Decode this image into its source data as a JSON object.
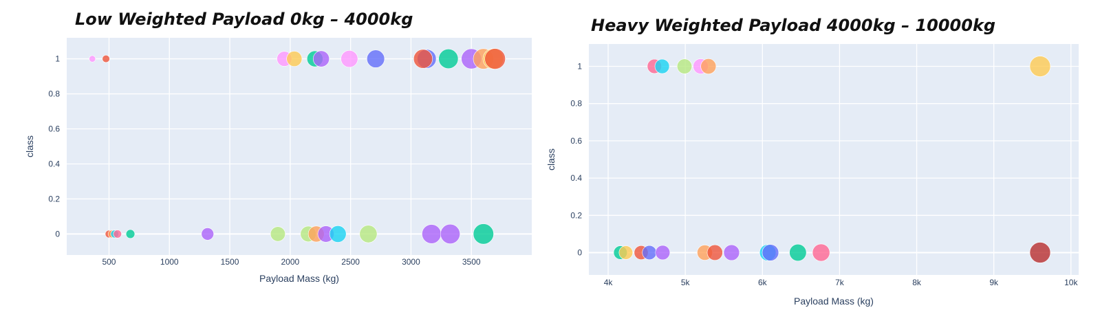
{
  "chart_data": [
    {
      "id": "left",
      "type": "scatter",
      "title": "Low Weighted Payload 0kg – 4000kg",
      "xlabel": "Payload Mass (kg)",
      "ylabel": "class",
      "xlim": [
        150,
        4000
      ],
      "ylim": [
        -0.12,
        1.12
      ],
      "xticks": [
        500,
        1000,
        1500,
        2000,
        2500,
        3000,
        3500
      ],
      "xtick_labels": [
        "500",
        "1000",
        "1500",
        "2000",
        "2500",
        "3000",
        "3500"
      ],
      "yticks": [
        0,
        0.2,
        0.4,
        0.6,
        0.8,
        1
      ],
      "ytick_labels": [
        "0",
        "0.2",
        "0.4",
        "0.6",
        "0.8",
        "1"
      ],
      "grid": true,
      "plot_bg": "#e5ecf6",
      "points": [
        {
          "x": 362,
          "y": 1,
          "color": "#ff97ff"
        },
        {
          "x": 475,
          "y": 1,
          "color": "#ef553b"
        },
        {
          "x": 1952,
          "y": 1,
          "color": "#ff97ff"
        },
        {
          "x": 2034,
          "y": 1,
          "color": "#fecb52"
        },
        {
          "x": 2205,
          "y": 1,
          "color": "#00cc96"
        },
        {
          "x": 2257,
          "y": 1,
          "color": "#ab63fa"
        },
        {
          "x": 2490,
          "y": 1,
          "color": "#ff97ff"
        },
        {
          "x": 2708,
          "y": 1,
          "color": "#636efa"
        },
        {
          "x": 3130,
          "y": 1,
          "color": "#636efa"
        },
        {
          "x": 3100,
          "y": 1,
          "color": "#ef553b"
        },
        {
          "x": 3310,
          "y": 1,
          "color": "#00cc96"
        },
        {
          "x": 3500,
          "y": 1,
          "color": "#ab63fa"
        },
        {
          "x": 3600,
          "y": 1,
          "color": "#ffa15a"
        },
        {
          "x": 3681,
          "y": 1,
          "color": "#fecb52"
        },
        {
          "x": 3696,
          "y": 1,
          "color": "#ef553b"
        },
        {
          "x": 500,
          "y": 0,
          "color": "#ef553b"
        },
        {
          "x": 525,
          "y": 0,
          "color": "#ffa15a"
        },
        {
          "x": 547,
          "y": 0,
          "color": "#19d3f3"
        },
        {
          "x": 570,
          "y": 0,
          "color": "#ff6692"
        },
        {
          "x": 677,
          "y": 0,
          "color": "#00cc96"
        },
        {
          "x": 1316,
          "y": 0,
          "color": "#ab63fa"
        },
        {
          "x": 1898,
          "y": 0,
          "color": "#b6e880"
        },
        {
          "x": 2150,
          "y": 0,
          "color": "#b6e880"
        },
        {
          "x": 2216,
          "y": 0,
          "color": "#ffa15a"
        },
        {
          "x": 2296,
          "y": 0,
          "color": "#ab63fa"
        },
        {
          "x": 2395,
          "y": 0,
          "color": "#19d3f3"
        },
        {
          "x": 2647,
          "y": 0,
          "color": "#b6e880"
        },
        {
          "x": 3170,
          "y": 0,
          "color": "#ab63fa"
        },
        {
          "x": 3325,
          "y": 0,
          "color": "#ab63fa"
        },
        {
          "x": 3600,
          "y": 0,
          "color": "#00cc96"
        }
      ]
    },
    {
      "id": "right",
      "type": "scatter",
      "title": "Heavy Weighted Payload 4000kg – 10000kg",
      "xlabel": "Payload Mass (kg)",
      "ylabel": "class",
      "xlim": [
        3750,
        10100
      ],
      "ylim": [
        -0.12,
        1.12
      ],
      "xticks": [
        4000,
        5000,
        6000,
        7000,
        8000,
        9000,
        10000
      ],
      "xtick_labels": [
        "4k",
        "5k",
        "6k",
        "7k",
        "8k",
        "9k",
        "10k"
      ],
      "yticks": [
        0,
        0.2,
        0.4,
        0.6,
        0.8,
        1
      ],
      "ytick_labels": [
        "0",
        "0.2",
        "0.4",
        "0.6",
        "0.8",
        "1"
      ],
      "grid": true,
      "plot_bg": "#e5ecf6",
      "points": [
        {
          "x": 4600,
          "y": 1,
          "color": "#ff6692"
        },
        {
          "x": 4700,
          "y": 1,
          "color": "#19d3f3"
        },
        {
          "x": 4990,
          "y": 1,
          "color": "#b6e880"
        },
        {
          "x": 5200,
          "y": 1,
          "color": "#ff97ff"
        },
        {
          "x": 5300,
          "y": 1,
          "color": "#ffa15a"
        },
        {
          "x": 9600,
          "y": 1,
          "color": "#fecb52"
        },
        {
          "x": 4159,
          "y": 0,
          "color": "#00cc96"
        },
        {
          "x": 4230,
          "y": 0,
          "color": "#fecb52"
        },
        {
          "x": 4428,
          "y": 0,
          "color": "#ef553b"
        },
        {
          "x": 4535,
          "y": 0,
          "color": "#636efa"
        },
        {
          "x": 4707,
          "y": 0,
          "color": "#ab63fa"
        },
        {
          "x": 5253,
          "y": 0,
          "color": "#ffa15a"
        },
        {
          "x": 5384,
          "y": 0,
          "color": "#ef553b"
        },
        {
          "x": 5600,
          "y": 0,
          "color": "#ab63fa"
        },
        {
          "x": 6070,
          "y": 0,
          "color": "#19d3f3"
        },
        {
          "x": 6104,
          "y": 0,
          "color": "#636efa"
        },
        {
          "x": 6460,
          "y": 0,
          "color": "#00cc96"
        },
        {
          "x": 6761,
          "y": 0,
          "color": "#ff6692"
        },
        {
          "x": 9600,
          "y": 0,
          "color": "#b82e2e"
        }
      ]
    }
  ]
}
